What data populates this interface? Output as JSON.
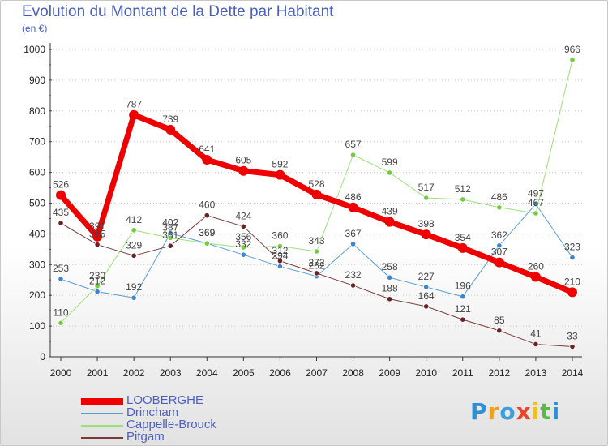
{
  "header": {
    "title": "Evolution du Montant de la Dette par Habitant",
    "subtitle": "(en €)"
  },
  "logo": {
    "letters": [
      "P",
      "r",
      "o",
      "x",
      "i",
      "t",
      "i"
    ],
    "colors": [
      "#2d8fd5",
      "#f0a020",
      "#3aa0e0",
      "#e8452c",
      "#f0c020",
      "#5bb84a",
      "#2d8fd5"
    ]
  },
  "chart_data": {
    "type": "line",
    "categories": [
      "2000",
      "2001",
      "2002",
      "2003",
      "2004",
      "2005",
      "2006",
      "2007",
      "2008",
      "2009",
      "2010",
      "2011",
      "2012",
      "2013",
      "2014"
    ],
    "ylim": [
      0,
      1000
    ],
    "yticks": [
      0,
      100,
      200,
      300,
      400,
      500,
      600,
      700,
      800,
      900,
      1000
    ],
    "ytick_labels": [
      "0",
      "100",
      "200",
      "300",
      "400",
      "500",
      "600",
      "700",
      "800",
      "900",
      "1000"
    ],
    "grid": "horizontal dotted",
    "legend_position": "bottom-left",
    "series": [
      {
        "name": "Drincham",
        "color": "#5a9fd4",
        "marker": "#3b86cc",
        "width": 1,
        "values": [
          253,
          212,
          192,
          402,
          369,
          332,
          294,
          262,
          367,
          258,
          227,
          196,
          362,
          497,
          323
        ]
      },
      {
        "name": "Cappelle-Brouck",
        "color": "#9be07a",
        "marker": "#72cc3d",
        "width": 1,
        "values": [
          110,
          230,
          412,
          387,
          369,
          356,
          360,
          343,
          657,
          599,
          517,
          512,
          486,
          467,
          966
        ]
      },
      {
        "name": "Pitgam",
        "color": "#7a3a3a",
        "marker": "#6a2222",
        "width": 1,
        "values": [
          435,
          365,
          329,
          361,
          460,
          424,
          312,
          272,
          232,
          188,
          164,
          121,
          85,
          41,
          33
        ]
      },
      {
        "name": "LOOBERGHE",
        "color": "#ee0000",
        "marker": "#ee0000",
        "width": 7,
        "values": [
          526,
          391,
          787,
          739,
          641,
          605,
          592,
          528,
          486,
          439,
          398,
          354,
          307,
          260,
          210
        ]
      }
    ],
    "legend_order": [
      "LOOBERGHE",
      "Drincham",
      "Cappelle-Brouck",
      "Pitgam"
    ]
  }
}
